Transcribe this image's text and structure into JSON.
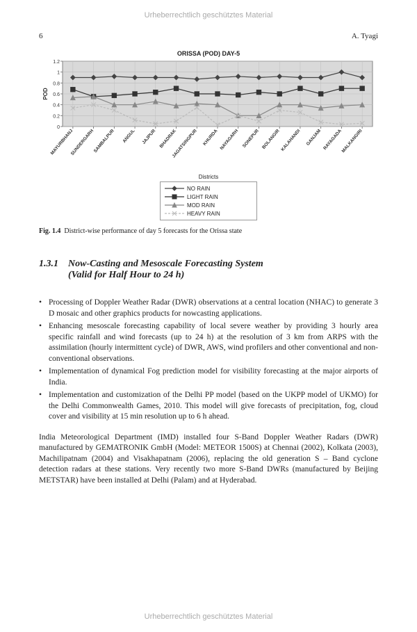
{
  "copyright_text": "Urheberrechtlich geschütztes Material",
  "header": {
    "page_number": "6",
    "author": "A. Tyagi"
  },
  "chart": {
    "type": "line",
    "title": "ORISSA (POD) DAY-5",
    "ylabel": "POD",
    "label_fontsize": 8,
    "title_fontsize": 9,
    "ylim": [
      0,
      1.2
    ],
    "ytick_step": 0.2,
    "yticks": [
      "0",
      "0.2",
      "0.4",
      "0.6",
      "0.8",
      "1",
      "1.2"
    ],
    "categories": [
      "MAYURBHANJ",
      "SUNDERGARH",
      "SAMBALPUR",
      "ANGUL",
      "JAJPUR",
      "BHADRAK",
      "JAGATSINGPUR",
      "KHURDA",
      "NAYAGARH",
      "SONEPUR",
      "BOLANGIR",
      "KALAHANDI",
      "GANJAM",
      "RAYAGADA",
      "MALKANGIRI"
    ],
    "series": [
      {
        "name": "NO RAIN",
        "marker": "diamond",
        "color": "#444444",
        "dash": "none",
        "values": [
          0.9,
          0.9,
          0.92,
          0.9,
          0.9,
          0.9,
          0.87,
          0.9,
          0.92,
          0.9,
          0.92,
          0.9,
          0.9,
          1.0,
          0.9
        ]
      },
      {
        "name": "LIGHT RAIN",
        "marker": "square",
        "color": "#333333",
        "dash": "none",
        "values": [
          0.68,
          0.55,
          0.57,
          0.6,
          0.63,
          0.7,
          0.6,
          0.6,
          0.58,
          0.63,
          0.6,
          0.7,
          0.6,
          0.7,
          0.7
        ]
      },
      {
        "name": "MOD RAIN",
        "marker": "triangle",
        "color": "#888888",
        "dash": "none",
        "values": [
          0.53,
          0.55,
          0.4,
          0.4,
          0.46,
          0.38,
          0.42,
          0.4,
          0.2,
          0.2,
          0.4,
          0.4,
          0.34,
          0.38,
          0.4
        ]
      },
      {
        "name": "HEAVY RAIN",
        "marker": "cross",
        "color": "#bbbbbb",
        "dash": "dash",
        "values": [
          0.34,
          0.4,
          0.3,
          0.12,
          0.05,
          0.1,
          0.35,
          0.03,
          0.2,
          0.1,
          0.3,
          0.26,
          0.08,
          0.04,
          0.06
        ]
      }
    ],
    "plot_bg": "#d9d9d9",
    "grid_color": "#bdbdbd",
    "axis_color": "#666666",
    "legend_title": "Districts",
    "line_width": 1.2,
    "marker_size": 3.2
  },
  "figure_caption": {
    "label": "Fig. 1.4",
    "text": "District-wise performance of day 5 forecasts for the Orissa state"
  },
  "section": {
    "number": "1.3.1",
    "title_line1": "Now-Casting and Mesoscale Forecasting System",
    "title_line2": "(Valid for Half Hour to 24 h)"
  },
  "bullets": [
    "Processing of Doppler Weather Radar (DWR) observations at a central location (NHAC) to generate 3 D mosaic and other graphics products for nowcasting applications.",
    "Enhancing mesoscale forecasting capability of local severe weather by providing 3 hourly area specific rainfall and wind forecasts (up to 24 h) at the resolution of 3 km from ARPS with the assimilation (hourly intermittent cycle) of DWR, AWS, wind profilers and other conventional and non-conventional observations.",
    "Implementation of dynamical Fog prediction model for visibility forecasting at the major airports of India.",
    "Implementation and customization of the Delhi PP model (based on the UKPP model of UKMO) for the Delhi Commonwealth Games, 2010. This model will give forecasts of precipitation, fog, cloud cover and visibility at 15 min resolution up to 6 h ahead."
  ],
  "body_paragraph": "India Meteorological Department (IMD) installed four S-Band Doppler Weather Radars (DWR) manufactured by GEMATRONIK GmbH (Model: METEOR 1500S) at Chennai (2002), Kolkata (2003), Machilipatnam (2004) and Visakhapatnam (2006), replacing the old generation S – Band cyclone detection radars at these stations. Very recently two more S-Band DWRs (manufactured by Beijing METSTAR) have been installed at Delhi (Palam) and at Hyderabad."
}
